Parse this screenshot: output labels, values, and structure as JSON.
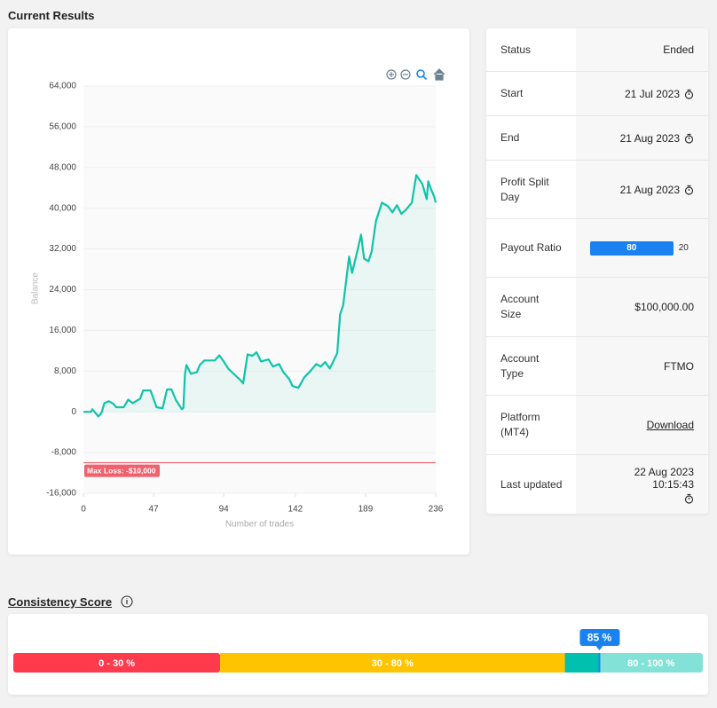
{
  "header": {
    "title": "Current Results"
  },
  "chart_data": {
    "type": "area",
    "y_label": "Balance",
    "x_label": "Number of trades",
    "color": "#10c3a9",
    "grid": true,
    "x": [
      0,
      5,
      6,
      10,
      12,
      14,
      17,
      20,
      22,
      27,
      30,
      33,
      38,
      40,
      45,
      49,
      53,
      56,
      59,
      62,
      66,
      67,
      68,
      69,
      72,
      76,
      78,
      81,
      88,
      91,
      94,
      97,
      102,
      105,
      107,
      110,
      113,
      116,
      119,
      124,
      127,
      131,
      134,
      138,
      140,
      144,
      148,
      152,
      156,
      159,
      162,
      165,
      170,
      172,
      174,
      178,
      180,
      184,
      186,
      188,
      191,
      193,
      196,
      200,
      204,
      207,
      210,
      213,
      216,
      220,
      223,
      227,
      230,
      231,
      233,
      235,
      236
    ],
    "values": [
      0,
      0,
      500,
      -900,
      -300,
      1700,
      2100,
      1600,
      900,
      900,
      2400,
      1700,
      2600,
      4200,
      4200,
      900,
      700,
      4400,
      4400,
      2300,
      500,
      800,
      7300,
      9200,
      7500,
      7800,
      9200,
      10100,
      10100,
      11100,
      9900,
      8500,
      7100,
      6300,
      5600,
      11300,
      11000,
      11700,
      9900,
      10300,
      8900,
      9400,
      7800,
      6400,
      5100,
      4700,
      6800,
      8000,
      9400,
      8900,
      9800,
      8500,
      11500,
      19200,
      20900,
      30500,
      27300,
      32200,
      34800,
      30100,
      29600,
      31400,
      37500,
      41100,
      40400,
      39200,
      40600,
      38900,
      39700,
      41100,
      46500,
      44800,
      41800,
      45300,
      43600,
      42300,
      41100
    ],
    "xlim": [
      0,
      236
    ],
    "xticks": [
      0,
      47,
      94,
      142,
      189,
      236
    ],
    "ylim": [
      -16000,
      64000
    ],
    "yticks": [
      {
        "value": 64000,
        "label": "64,000"
      },
      {
        "value": 56000,
        "label": "56,000"
      },
      {
        "value": 48000,
        "label": "48,000"
      },
      {
        "value": 40000,
        "label": "40,000"
      },
      {
        "value": 32000,
        "label": "32,000"
      },
      {
        "value": 24000,
        "label": "24,000"
      },
      {
        "value": 16000,
        "label": "16,000"
      },
      {
        "value": 8000,
        "label": "8,000"
      },
      0,
      {
        "value": -8000,
        "label": "-8,000"
      },
      {
        "value": -16000,
        "label": "-16,000"
      }
    ],
    "threshold": {
      "value": -10000,
      "label": "Max Loss: -$10,000",
      "color": "#f0616d"
    }
  },
  "info": {
    "rows": [
      {
        "label": "Status",
        "value": "Ended"
      },
      {
        "label": "Start",
        "value": "21 Jul 2023"
      },
      {
        "label": "End",
        "value": "21 Aug 2023"
      },
      {
        "label": "Profit Split Day",
        "value": "21 Aug 2023"
      },
      {
        "label": "Payout Ratio",
        "values": [
          80,
          20
        ],
        "color": "#1a82f0"
      },
      {
        "label": "Account Size",
        "value": "$100,000.00"
      },
      {
        "label": "Account Type",
        "value": "FTMO"
      },
      {
        "label": "Platform (MT4)",
        "value": "Download"
      },
      {
        "label": "Last updated",
        "value": "22 Aug 2023 10:15:43"
      }
    ]
  },
  "consistency": {
    "title": "Consistency Score",
    "segments": [
      {
        "label": "0 - 30 %",
        "from": 0,
        "to": 30,
        "color": "#ff3a4c"
      },
      {
        "label": "30 - 80 %",
        "from": 30,
        "to": 80,
        "color": "#ffc400"
      },
      {
        "label": "80 - 100 %",
        "from": 80,
        "to": 100,
        "color": "#82e2d7"
      }
    ],
    "score": 85,
    "score_label": "85 %",
    "score_fill": "#00c0ae",
    "marker_color": "#1a82f0"
  }
}
